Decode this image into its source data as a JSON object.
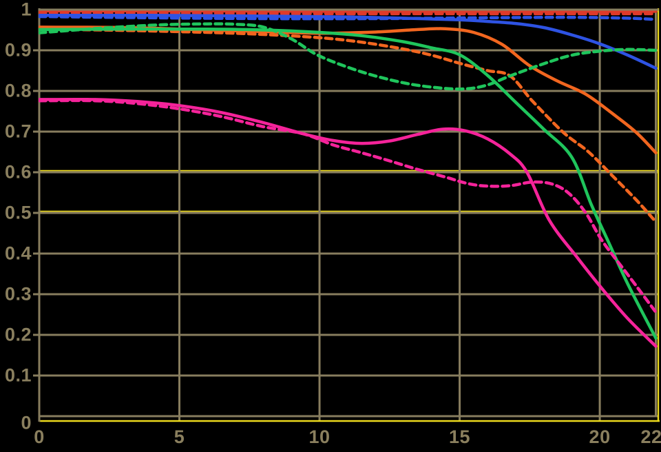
{
  "chart_data": {
    "type": "line",
    "title": "",
    "xlabel": "",
    "ylabel": "",
    "xlim": [
      0,
      22
    ],
    "ylim": [
      0,
      1
    ],
    "grid": true,
    "legend": "none",
    "background": "#000000",
    "colors": {
      "grid": "#877d5e",
      "axis_accent_yellow": "#ecda1c",
      "tick_label": "#8a7f5e",
      "red": "#df3a2a",
      "blue": "#2e53e3",
      "orange": "#f2661f",
      "green": "#1fc55c",
      "magenta": "#f5239a"
    },
    "x_ticks": [
      {
        "value": 0,
        "label": "0"
      },
      {
        "value": 5,
        "label": "5"
      },
      {
        "value": 10,
        "label": "10"
      },
      {
        "value": 15,
        "label": "15"
      },
      {
        "value": 20,
        "label": "20"
      },
      {
        "value": 22,
        "label": "22"
      }
    ],
    "y_ticks": [
      {
        "value": 1.0,
        "label": "1"
      },
      {
        "value": 0.9,
        "label": "0.9"
      },
      {
        "value": 0.8,
        "label": "0.8"
      },
      {
        "value": 0.7,
        "label": "0.7"
      },
      {
        "value": 0.6,
        "label": "0.6"
      },
      {
        "value": 0.5,
        "label": "0.5"
      },
      {
        "value": 0.4,
        "label": "0.4"
      },
      {
        "value": 0.3,
        "label": "0.3"
      },
      {
        "value": 0.2,
        "label": "0.2"
      },
      {
        "value": 0.1,
        "label": "0.1"
      },
      {
        "value": 0.0,
        "label": "0"
      }
    ],
    "yellow_accent_gridlines": [
      0.6,
      0.5
    ],
    "series": [
      {
        "name": "red-solid",
        "color": "#df3a2a",
        "style": "solid",
        "points": [
          [
            0,
            0.997
          ],
          [
            5,
            0.997
          ],
          [
            10,
            0.996
          ],
          [
            15,
            0.996
          ],
          [
            20,
            0.996
          ],
          [
            22,
            0.996
          ]
        ]
      },
      {
        "name": "red-dashed",
        "color": "#df3a2a",
        "style": "dashed",
        "points": [
          [
            0,
            0.991
          ],
          [
            5,
            0.991
          ],
          [
            10,
            0.99
          ],
          [
            15,
            0.99
          ],
          [
            20,
            0.99
          ],
          [
            22,
            0.99
          ]
        ]
      },
      {
        "name": "blue-dashed",
        "color": "#2e53e3",
        "style": "dashed",
        "points": [
          [
            0,
            0.983
          ],
          [
            4,
            0.98
          ],
          [
            8,
            0.978
          ],
          [
            12,
            0.978
          ],
          [
            16,
            0.98
          ],
          [
            19,
            0.981
          ],
          [
            21,
            0.979
          ],
          [
            22,
            0.976
          ]
        ]
      },
      {
        "name": "blue-solid",
        "color": "#2e53e3",
        "style": "solid",
        "points": [
          [
            0,
            0.986
          ],
          [
            4,
            0.986
          ],
          [
            8,
            0.984
          ],
          [
            11,
            0.982
          ],
          [
            13,
            0.979
          ],
          [
            15,
            0.975
          ],
          [
            16,
            0.971
          ],
          [
            17,
            0.966
          ],
          [
            18,
            0.956
          ],
          [
            19,
            0.938
          ],
          [
            20,
            0.916
          ],
          [
            21,
            0.888
          ],
          [
            22,
            0.856
          ]
        ]
      },
      {
        "name": "orange-dashed",
        "color": "#f2661f",
        "style": "dashed",
        "points": [
          [
            0,
            0.952
          ],
          [
            3,
            0.949
          ],
          [
            6,
            0.944
          ],
          [
            8,
            0.939
          ],
          [
            10,
            0.931
          ],
          [
            11.5,
            0.92
          ],
          [
            13,
            0.903
          ],
          [
            14,
            0.888
          ],
          [
            15,
            0.868
          ],
          [
            16,
            0.85
          ],
          [
            16.8,
            0.837
          ],
          [
            17.6,
            0.775
          ],
          [
            18.7,
            0.698
          ],
          [
            19.6,
            0.65
          ],
          [
            20.5,
            0.588
          ],
          [
            21.3,
            0.532
          ],
          [
            22,
            0.478
          ]
        ]
      },
      {
        "name": "orange-solid",
        "color": "#f2661f",
        "style": "solid",
        "points": [
          [
            0,
            0.957
          ],
          [
            3,
            0.956
          ],
          [
            6,
            0.95
          ],
          [
            8,
            0.946
          ],
          [
            10,
            0.942
          ],
          [
            12,
            0.945
          ],
          [
            13.5,
            0.951
          ],
          [
            14.5,
            0.953
          ],
          [
            15.5,
            0.944
          ],
          [
            16.5,
            0.915
          ],
          [
            17.5,
            0.862
          ],
          [
            18.5,
            0.824
          ],
          [
            19.5,
            0.792
          ],
          [
            20.5,
            0.742
          ],
          [
            21.3,
            0.698
          ],
          [
            22,
            0.648
          ]
        ]
      },
      {
        "name": "green-dashed",
        "color": "#1fc55c",
        "style": "dashed",
        "points": [
          [
            0,
            0.943
          ],
          [
            1.5,
            0.951
          ],
          [
            3,
            0.958
          ],
          [
            4.5,
            0.963
          ],
          [
            6,
            0.965
          ],
          [
            7,
            0.964
          ],
          [
            8,
            0.957
          ],
          [
            9,
            0.928
          ],
          [
            10,
            0.886
          ],
          [
            11.5,
            0.847
          ],
          [
            13,
            0.82
          ],
          [
            14.2,
            0.808
          ],
          [
            15.2,
            0.805
          ],
          [
            16,
            0.815
          ],
          [
            16.8,
            0.837
          ],
          [
            18,
            0.867
          ],
          [
            19,
            0.888
          ],
          [
            20,
            0.898
          ],
          [
            21,
            0.902
          ],
          [
            22,
            0.9
          ]
        ]
      },
      {
        "name": "green-solid",
        "color": "#1fc55c",
        "style": "solid",
        "points": [
          [
            0,
            0.951
          ],
          [
            3,
            0.952
          ],
          [
            6,
            0.952
          ],
          [
            8,
            0.95
          ],
          [
            10,
            0.944
          ],
          [
            11.5,
            0.936
          ],
          [
            13,
            0.921
          ],
          [
            14,
            0.906
          ],
          [
            15,
            0.889
          ],
          [
            16,
            0.838
          ],
          [
            17,
            0.772
          ],
          [
            18,
            0.706
          ],
          [
            19,
            0.637
          ],
          [
            19.7,
            0.52
          ],
          [
            20.3,
            0.43
          ],
          [
            21,
            0.325
          ],
          [
            22,
            0.192
          ]
        ]
      },
      {
        "name": "magenta-dashed",
        "color": "#f5239a",
        "style": "dashed",
        "points": [
          [
            0,
            0.776
          ],
          [
            2,
            0.776
          ],
          [
            3.5,
            0.769
          ],
          [
            5,
            0.756
          ],
          [
            6.5,
            0.737
          ],
          [
            8,
            0.712
          ],
          [
            9.4,
            0.695
          ],
          [
            10.5,
            0.667
          ],
          [
            11.5,
            0.648
          ],
          [
            12.5,
            0.628
          ],
          [
            13.5,
            0.607
          ],
          [
            14.5,
            0.588
          ],
          [
            15.3,
            0.572
          ],
          [
            16,
            0.566
          ],
          [
            16.8,
            0.567
          ],
          [
            17.6,
            0.576
          ],
          [
            18.3,
            0.571
          ],
          [
            18.9,
            0.548
          ],
          [
            19.5,
            0.5
          ],
          [
            20.1,
            0.43
          ],
          [
            21,
            0.348
          ],
          [
            22,
            0.256
          ]
        ]
      },
      {
        "name": "magenta-solid",
        "color": "#f5239a",
        "style": "solid",
        "points": [
          [
            0,
            0.779
          ],
          [
            2,
            0.779
          ],
          [
            3.5,
            0.774
          ],
          [
            5,
            0.764
          ],
          [
            6.5,
            0.747
          ],
          [
            8,
            0.722
          ],
          [
            9.4,
            0.695
          ],
          [
            10.5,
            0.678
          ],
          [
            11.5,
            0.671
          ],
          [
            12.5,
            0.677
          ],
          [
            13.5,
            0.693
          ],
          [
            14.4,
            0.706
          ],
          [
            15.2,
            0.702
          ],
          [
            16,
            0.682
          ],
          [
            16.8,
            0.645
          ],
          [
            17.4,
            0.6
          ],
          [
            18.2,
            0.482
          ],
          [
            19.2,
            0.39
          ],
          [
            20.1,
            0.312
          ],
          [
            21,
            0.24
          ],
          [
            22,
            0.172
          ]
        ]
      }
    ]
  }
}
